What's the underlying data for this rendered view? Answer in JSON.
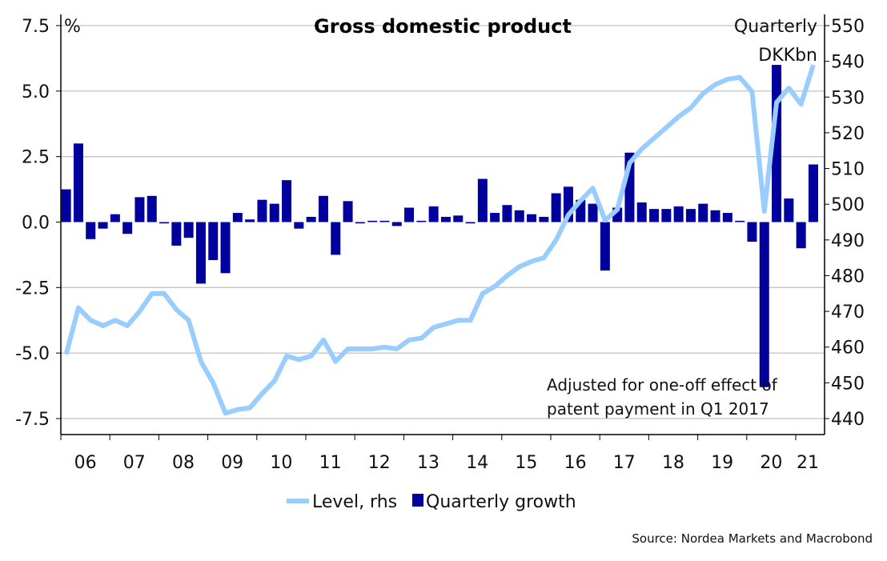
{
  "chart_data": {
    "type": "bar+line",
    "title": "Gross domestic product",
    "left_axis": {
      "unit_label": "%",
      "ylim": [
        -7.5,
        7.5
      ],
      "ticks": [
        "7.5",
        "5.0",
        "2.5",
        "0.0",
        "-2.5",
        "-5.0",
        "-7.5"
      ],
      "tick_values": [
        7.5,
        5,
        2.5,
        0,
        -2.5,
        -5,
        -7.5
      ]
    },
    "right_axis": {
      "unit_label_1": "Quarterly",
      "unit_label_2": "DKKbn",
      "ylim": [
        440,
        550
      ],
      "ticks": [
        "550",
        "540",
        "530",
        "520",
        "510",
        "500",
        "490",
        "480",
        "470",
        "460",
        "450",
        "440"
      ],
      "tick_values": [
        550,
        540,
        530,
        520,
        510,
        500,
        490,
        480,
        470,
        460,
        450,
        440
      ]
    },
    "x_ticks": [
      "06",
      "07",
      "08",
      "09",
      "10",
      "11",
      "12",
      "13",
      "14",
      "15",
      "16",
      "17",
      "18",
      "19",
      "20",
      "21"
    ],
    "x_start": "2006Q1",
    "grid": true,
    "legend_position": "bottom-center",
    "series": [
      {
        "name": "Quarterly growth",
        "type": "bar",
        "axis": "left",
        "color": "#00009c",
        "values": [
          1.25,
          3.0,
          -0.65,
          -0.25,
          0.3,
          -0.45,
          0.95,
          1.0,
          -0.05,
          -0.9,
          -0.6,
          -2.35,
          -1.45,
          -1.95,
          0.35,
          0.1,
          0.85,
          0.7,
          1.6,
          -0.25,
          0.2,
          1.0,
          -1.25,
          0.8,
          -0.05,
          0.05,
          0.05,
          -0.15,
          0.55,
          0.05,
          0.6,
          0.2,
          0.25,
          -0.05,
          1.65,
          0.35,
          0.65,
          0.45,
          0.3,
          0.2,
          1.1,
          1.35,
          0.85,
          0.7,
          -1.85,
          0.55,
          2.65,
          0.75,
          0.5,
          0.5,
          0.6,
          0.5,
          0.7,
          0.45,
          0.35,
          0.05,
          -0.75,
          -6.3,
          6.0,
          0.9,
          -1.0,
          2.2
        ]
      },
      {
        "name": "Level, rhs",
        "type": "line",
        "axis": "right",
        "color": "#99ccff",
        "values": [
          458,
          471,
          467.5,
          466,
          467.5,
          466,
          470,
          475,
          475,
          470.5,
          467.5,
          456,
          450,
          441.5,
          442.5,
          443,
          447,
          450.5,
          457.5,
          456.5,
          457.5,
          462,
          456,
          459.5,
          459.5,
          459.5,
          460,
          459.5,
          462,
          462.5,
          465.5,
          466.5,
          467.5,
          467.5,
          475,
          477,
          480,
          482.5,
          484,
          485,
          490,
          497,
          501,
          504.5,
          495.5,
          498.5,
          511.5,
          515.5,
          518.5,
          521.5,
          524.5,
          527,
          531,
          533.5,
          535,
          535.5,
          531.5,
          498,
          528.5,
          532.5,
          528,
          539
        ]
      }
    ],
    "annotation_1": "Adjusted for one-off effect of",
    "annotation_2": "patent payment in Q1 2017",
    "legend": {
      "line_label": "Level, rhs",
      "bar_label": "Quarterly growth"
    },
    "source": "Source: Nordea Markets and Macrobond"
  }
}
